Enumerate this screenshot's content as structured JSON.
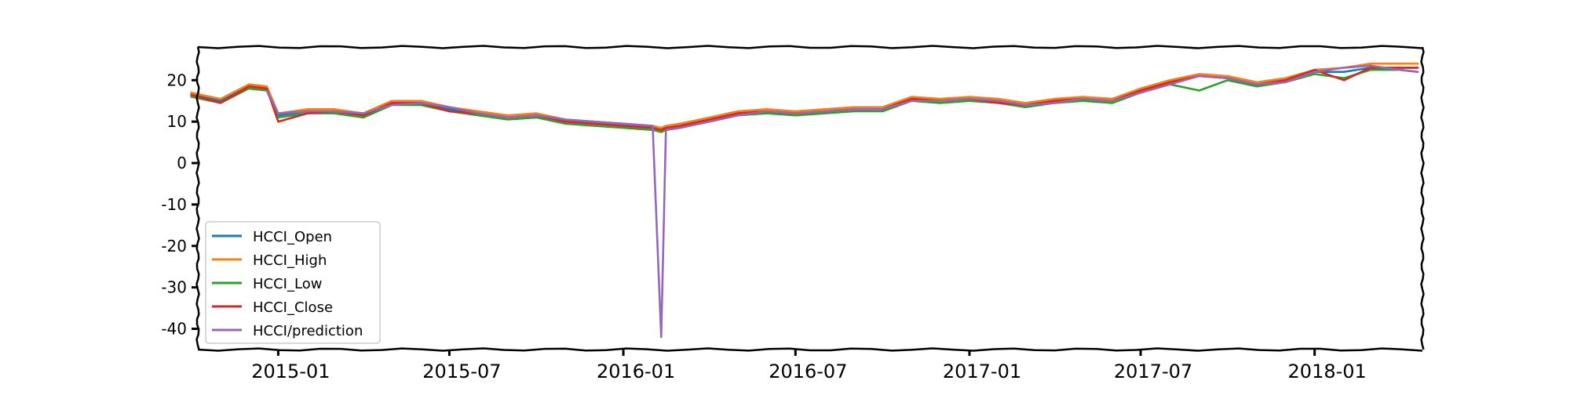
{
  "chart_data": {
    "type": "line",
    "title": "",
    "xlabel": "",
    "ylabel": "",
    "style": "xkcd",
    "grid": false,
    "legend_position": "lower-left",
    "x_range": [
      "2014-10-08",
      "2018-04-25"
    ],
    "ylim": [
      -45,
      28
    ],
    "x_ticks": [
      "2015-01",
      "2015-07",
      "2016-01",
      "2016-07",
      "2017-01",
      "2017-07",
      "2018-01"
    ],
    "y_ticks": [
      20,
      10,
      0,
      -10,
      -20,
      -30,
      -40
    ],
    "x": [
      "2014-10-01",
      "2014-11-01",
      "2014-12-01",
      "2014-12-20",
      "2015-01-01",
      "2015-02-01",
      "2015-03-01",
      "2015-04-01",
      "2015-05-01",
      "2015-06-01",
      "2015-07-01",
      "2015-08-01",
      "2015-09-01",
      "2015-10-01",
      "2015-11-01",
      "2015-12-01",
      "2016-01-01",
      "2016-02-01",
      "2016-02-10",
      "2016-02-15",
      "2016-03-01",
      "2016-04-01",
      "2016-05-01",
      "2016-06-01",
      "2016-07-01",
      "2016-08-01",
      "2016-09-01",
      "2016-10-01",
      "2016-11-01",
      "2016-12-01",
      "2017-01-01",
      "2017-02-01",
      "2017-03-01",
      "2017-04-01",
      "2017-05-01",
      "2017-06-01",
      "2017-07-01",
      "2017-08-01",
      "2017-09-01",
      "2017-10-01",
      "2017-11-01",
      "2017-12-01",
      "2018-01-01",
      "2018-02-01",
      "2018-03-01",
      "2018-04-01",
      "2018-04-20"
    ],
    "series": [
      {
        "name": "HCCI_Open",
        "color": "#1f77b4",
        "values": [
          16.5,
          15,
          18.5,
          18,
          11.5,
          12.5,
          12.5,
          11.5,
          14.5,
          14.5,
          13,
          12,
          11,
          11.5,
          10,
          9.5,
          9,
          8.5,
          8,
          8.5,
          9,
          10.5,
          12,
          12.5,
          12,
          12.5,
          13,
          13,
          15.5,
          15,
          15.5,
          15,
          14,
          15,
          15.5,
          15,
          17.5,
          19.5,
          21,
          20.5,
          19,
          20,
          22,
          22,
          23,
          23,
          23
        ]
      },
      {
        "name": "HCCI_High",
        "color": "#ff7f0e",
        "values": [
          17,
          15.5,
          19,
          18.5,
          12,
          13,
          13,
          12,
          15,
          15,
          13.5,
          12.5,
          11.5,
          12,
          10.5,
          10,
          9.5,
          9,
          8.5,
          9,
          9.5,
          11,
          12.5,
          13,
          12.5,
          13,
          13.5,
          13.5,
          16,
          15.5,
          16,
          15.5,
          14.5,
          15.5,
          16,
          15.5,
          18,
          20,
          21.5,
          21,
          19.5,
          20.5,
          22.5,
          23,
          24,
          24,
          24
        ]
      },
      {
        "name": "HCCI_Low",
        "color": "#2ca02c",
        "values": [
          16,
          14.5,
          18,
          17.5,
          11,
          12,
          12,
          11,
          14,
          14,
          12.5,
          11.5,
          10.5,
          11,
          9.5,
          9,
          8.5,
          8,
          7.5,
          8,
          8.5,
          10,
          11.5,
          12,
          11.5,
          12,
          12.5,
          12.5,
          15,
          14.5,
          15,
          14.5,
          13.5,
          14.5,
          15,
          14.5,
          17,
          19,
          17.5,
          20,
          18.5,
          19.5,
          21.5,
          20.5,
          22.5,
          22.5,
          22
        ]
      },
      {
        "name": "HCCI_Close",
        "color": "#d62728",
        "values": [
          16.5,
          14.5,
          18.5,
          18,
          10,
          12,
          12.5,
          11.5,
          14.5,
          14.5,
          12.5,
          12,
          11,
          11.5,
          10,
          9.5,
          9,
          8.5,
          8,
          8.5,
          9,
          10.5,
          12,
          12.5,
          12,
          12.5,
          13,
          13,
          15.5,
          15,
          15.5,
          14.5,
          14,
          15,
          15.5,
          15,
          17.5,
          19.5,
          21,
          20.5,
          19,
          20,
          22.5,
          20,
          23,
          23,
          23
        ]
      },
      {
        "name": "HCCI/prediction",
        "color": "#9467bd",
        "values": [
          null,
          null,
          null,
          17.5,
          12,
          12.5,
          12.5,
          12,
          14,
          14.5,
          13.5,
          12,
          11,
          11.5,
          10.5,
          10,
          9.5,
          9,
          -42,
          8,
          8.5,
          10,
          11.5,
          12.5,
          12,
          12.5,
          13,
          13,
          15,
          15,
          15.5,
          15,
          14,
          14.5,
          15.5,
          15,
          17,
          19,
          21,
          20.5,
          19,
          19.5,
          22,
          23,
          23.5,
          22.5,
          22
        ]
      }
    ]
  }
}
